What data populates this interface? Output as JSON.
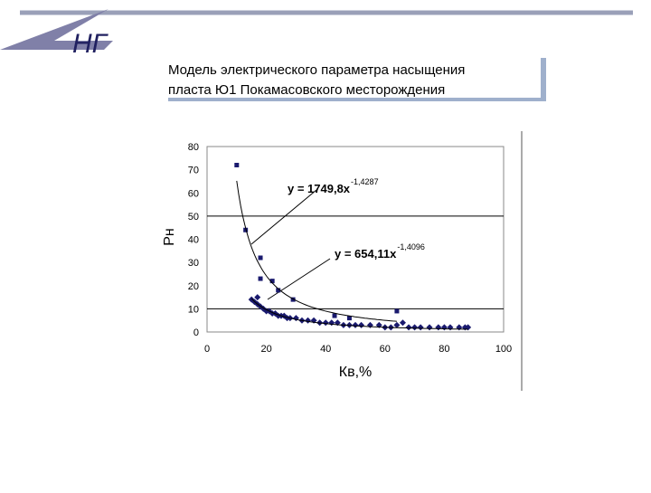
{
  "logo": "НГ",
  "title_lines": [
    "Модель электрического параметра насыщения",
    "пласта Ю1 Покамасовского месторождения"
  ],
  "chart_data": {
    "type": "scatter",
    "x_label": "Кв,%",
    "y_label": "Рн",
    "xlim": [
      0,
      100
    ],
    "xticks": [
      0,
      20,
      40,
      60,
      80,
      100
    ],
    "ylim": [
      0,
      80
    ],
    "yticks": [
      0,
      10,
      20,
      30,
      40,
      50,
      60,
      70,
      80
    ],
    "series": [
      {
        "color": "#1a1a6e",
        "marker": "square",
        "x": [
          10,
          13,
          18,
          18,
          22,
          24,
          29,
          43,
          48,
          64
        ],
        "values": [
          72,
          44,
          32,
          23,
          22,
          18,
          14,
          7,
          6,
          9
        ]
      },
      {
        "color": "#1a1a6e",
        "marker": "diamond",
        "x": [
          15,
          16,
          17,
          17,
          18,
          19,
          20,
          21,
          22,
          23,
          24,
          25,
          26,
          27,
          28,
          30,
          32,
          34,
          36,
          38,
          40,
          42,
          44,
          46,
          48,
          50,
          52,
          55,
          58,
          60,
          62,
          64,
          66,
          68,
          70,
          72,
          75,
          78,
          80,
          82,
          85,
          87,
          88
        ],
        "values": [
          14,
          13,
          15,
          12,
          11,
          10,
          9,
          9,
          8,
          8,
          7,
          7,
          7,
          6,
          6,
          6,
          5,
          5,
          5,
          4,
          4,
          4,
          4,
          3,
          3,
          3,
          3,
          3,
          3,
          2,
          2,
          3,
          4,
          2,
          2,
          2,
          2,
          2,
          2,
          2,
          2,
          2,
          2
        ]
      }
    ],
    "trendlines": [
      {
        "coefficient": 1749.8,
        "exponent": -1.4287,
        "label": "y = 1749,8x",
        "exponent_label": "-1,4287"
      },
      {
        "coefficient": 654.11,
        "exponent": -1.4096,
        "label": "y = 654,11x",
        "exponent_label": "-1,4096"
      }
    ]
  }
}
